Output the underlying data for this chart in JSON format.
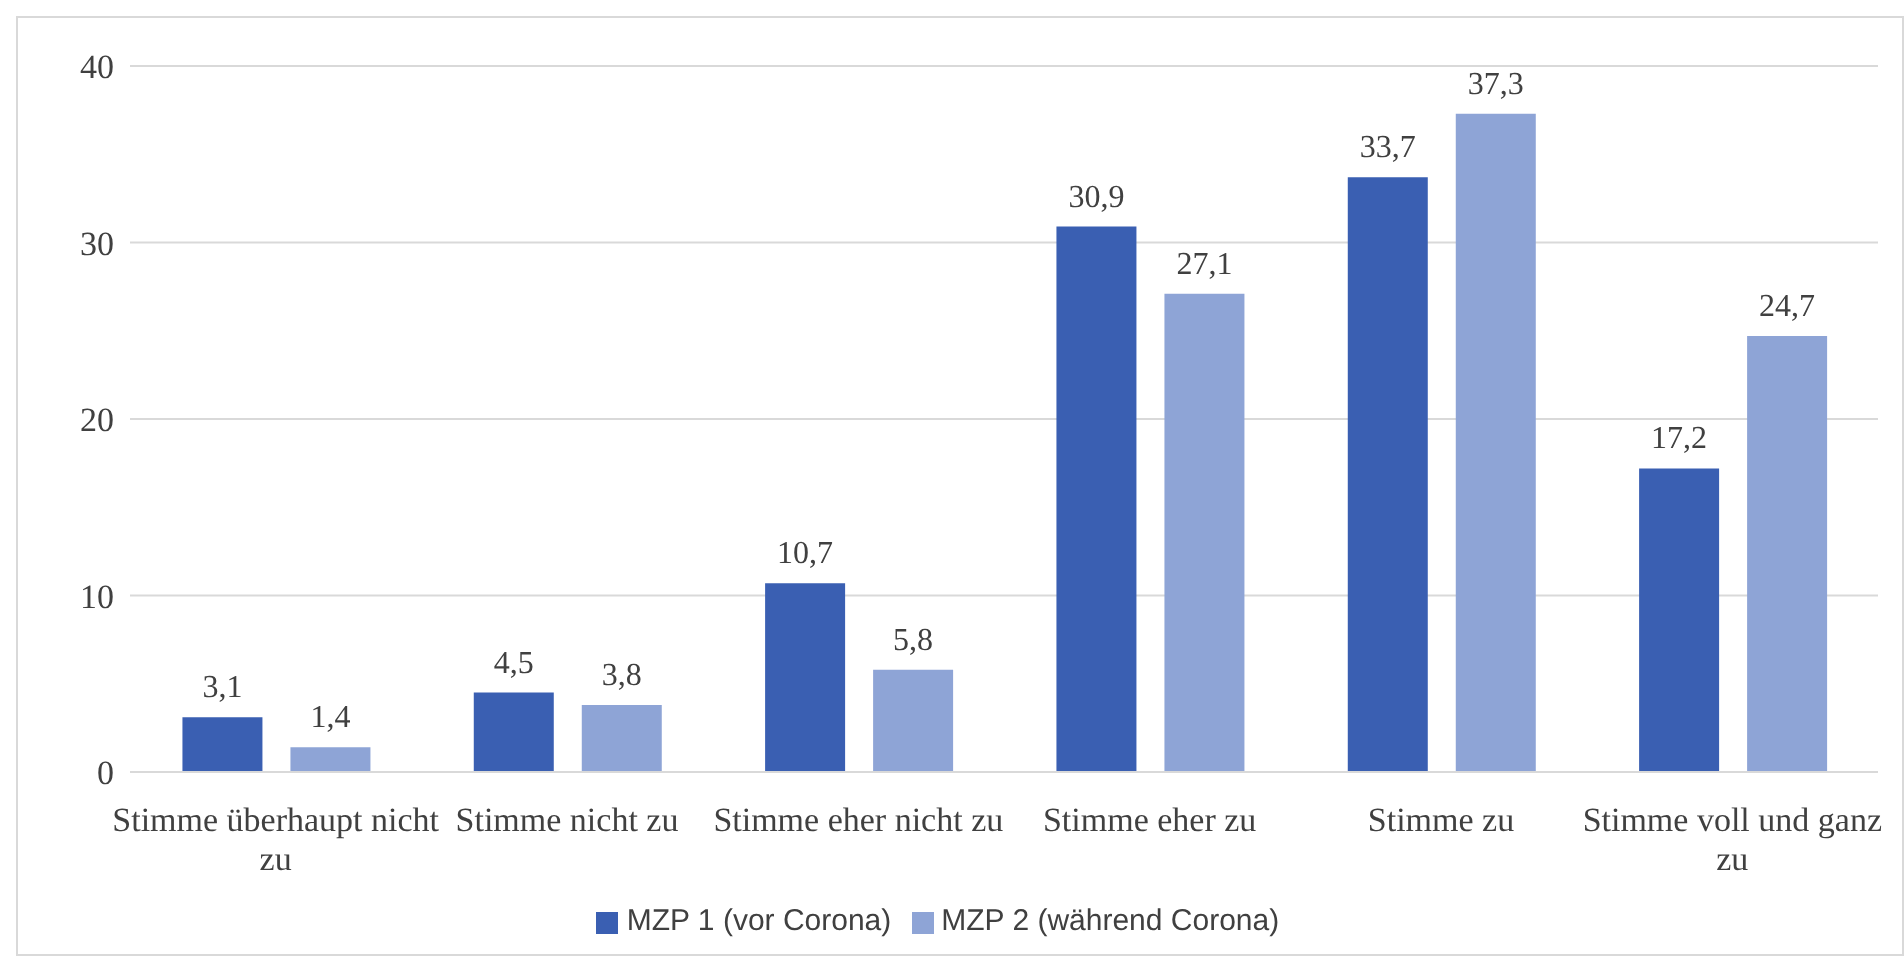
{
  "chart_data": {
    "type": "bar",
    "categories": [
      "Stimme überhaupt nicht zu",
      "Stimme nicht zu",
      "Stimme eher nicht zu",
      "Stimme eher zu",
      "Stimme zu",
      "Stimme voll und ganz zu"
    ],
    "series": [
      {
        "name": "MZP 1 (vor Corona)",
        "color": "#3a5fb2",
        "values": [
          3.1,
          4.5,
          10.7,
          30.9,
          33.7,
          17.2
        ],
        "value_labels": [
          "3,1",
          "4,5",
          "10,7",
          "30,9",
          "33,7",
          "17,2"
        ]
      },
      {
        "name": "MZP 2 (während Corona)",
        "color": "#8ea4d6",
        "values": [
          1.4,
          3.8,
          5.8,
          27.1,
          37.3,
          24.7
        ],
        "value_labels": [
          "1,4",
          "3,8",
          "5,8",
          "27,1",
          "37,3",
          "24,7"
        ]
      }
    ],
    "ylim": [
      0,
      40
    ],
    "yticks": [
      0,
      10,
      20,
      30,
      40
    ],
    "grid": "y",
    "legend": "bottom"
  }
}
